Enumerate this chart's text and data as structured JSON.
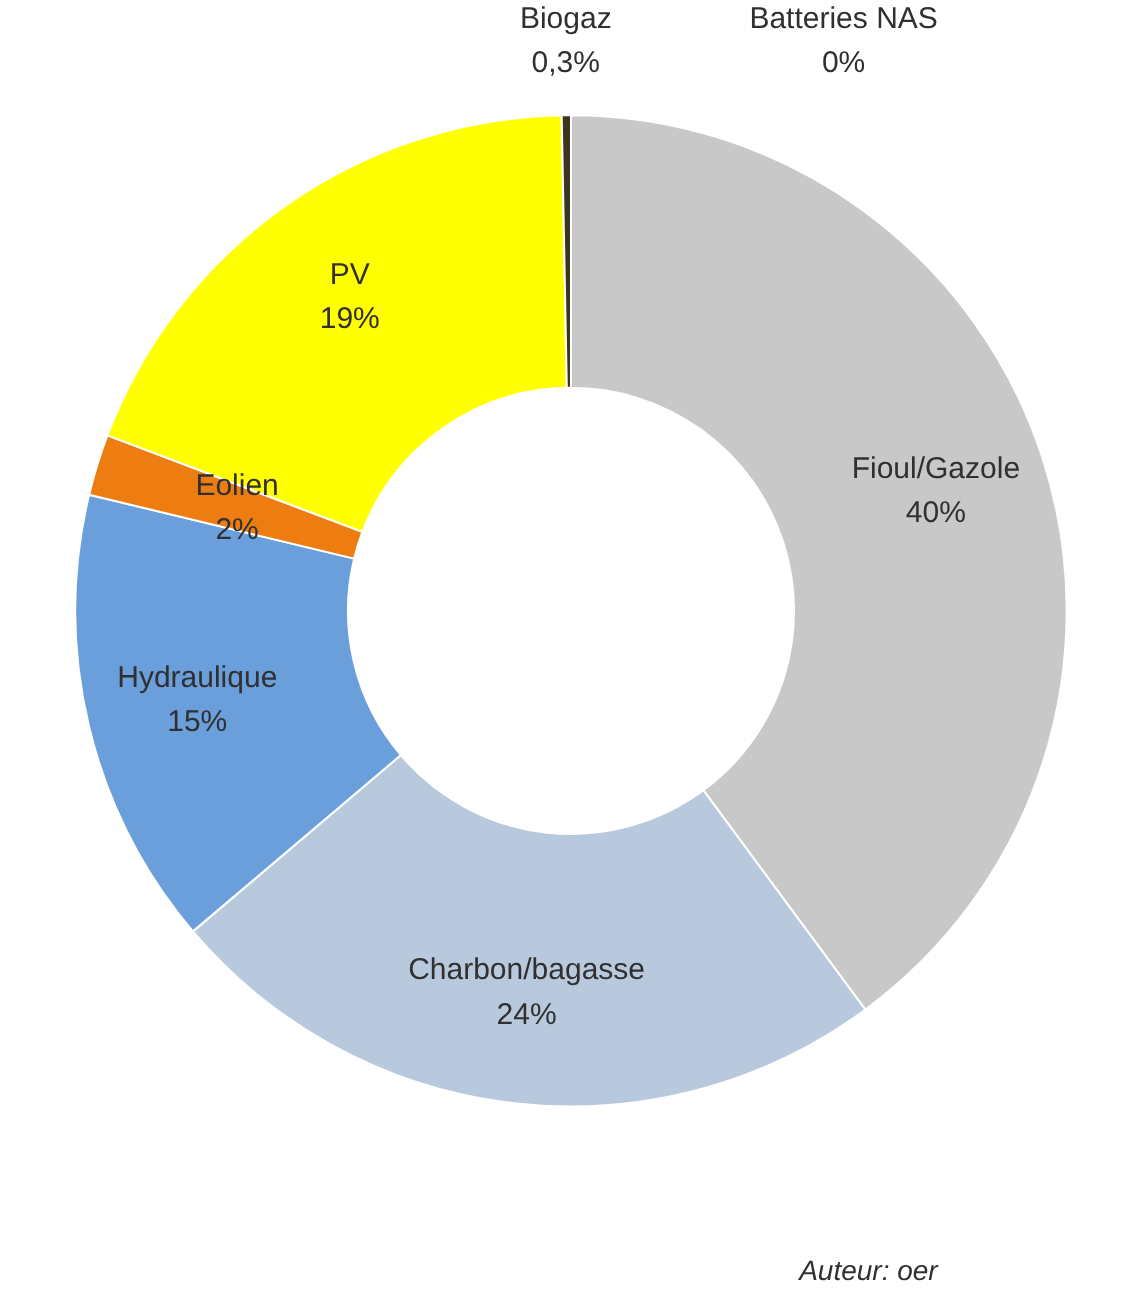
{
  "chart_data": {
    "type": "donut",
    "categories": [
      "Batteries NAS",
      "Fioul/Gazole",
      "Charbon/bagasse",
      "Hydraulique",
      "Eolien",
      "PV",
      "Biogaz"
    ],
    "values": [
      0,
      40,
      24,
      15,
      2,
      19,
      0.3
    ],
    "value_labels": [
      "0%",
      "40%",
      "24%",
      "15%",
      "2%",
      "19%",
      "0,3%"
    ],
    "colors": [
      "#404040",
      "#c8c8c8",
      "#b9c9dd",
      "#6a9fdc",
      "#ed7d10",
      "#ffff00",
      "#3b3520"
    ],
    "data_labels": true,
    "annotations": [
      "Auteur: oer"
    ]
  }
}
